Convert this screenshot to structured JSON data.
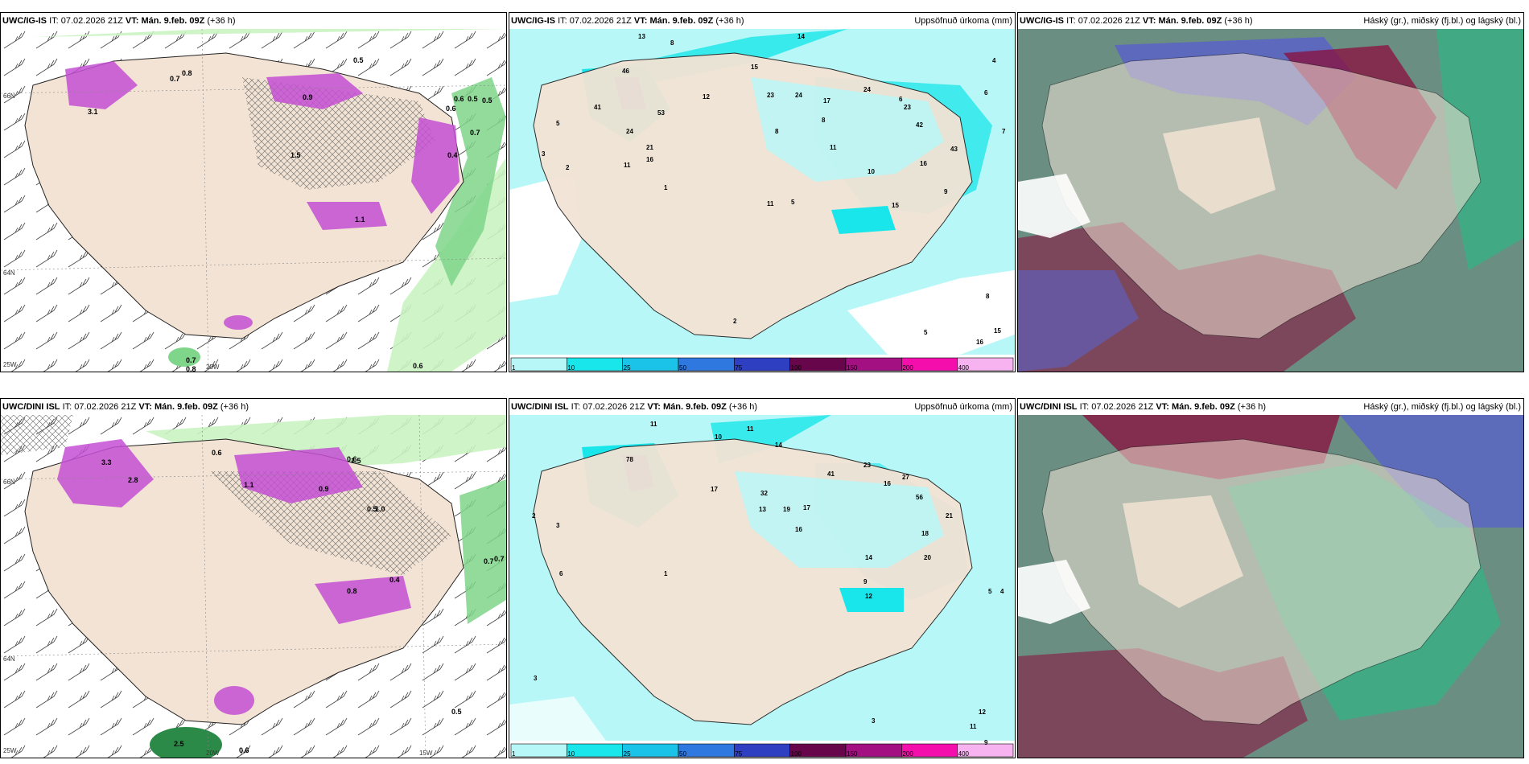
{
  "panels": [
    {
      "id": "p1",
      "model": "UWC/IG-IS",
      "it_label": "IT:",
      "it": "07.02.2026 21Z",
      "vt_label": "VT:",
      "vt": "Mán. 9.feb. 09Z",
      "lead": "(+36 h)",
      "field": ""
    },
    {
      "id": "p2",
      "model": "UWC/IG-IS",
      "it_label": "IT:",
      "it": "07.02.2026 21Z",
      "vt_label": "VT:",
      "vt": "Mán. 9.feb. 09Z",
      "lead": "(+36 h)",
      "field": "Uppsöfnuð úrkoma (mm)"
    },
    {
      "id": "p3",
      "model": "UWC/IG-IS",
      "it_label": "IT:",
      "it": "07.02.2026 21Z",
      "vt_label": "VT:",
      "vt": "Mán. 9.feb. 09Z",
      "lead": "(+36 h)",
      "field": "Háský (gr.), miðský (fj.bl.) og lágský (bl.)"
    },
    {
      "id": "p4",
      "model": "UWC/DINI ISL",
      "it_label": "IT:",
      "it": "07.02.2026 21Z",
      "vt_label": "VT:",
      "vt": "Mán. 9.feb. 09Z",
      "lead": "(+36 h)",
      "field": ""
    },
    {
      "id": "p5",
      "model": "UWC/DINI ISL",
      "it_label": "IT:",
      "it": "07.02.2026 21Z",
      "vt_label": "VT:",
      "vt": "Mán. 9.feb. 09Z",
      "lead": "(+36 h)",
      "field": "Uppsöfnuð úrkoma (mm)"
    },
    {
      "id": "p6",
      "model": "UWC/DINI ISL",
      "it_label": "IT:",
      "it": "07.02.2026 21Z",
      "vt_label": "VT:",
      "vt": "Mán. 9.feb. 09Z",
      "lead": "(+36 h)",
      "field": "Háský (gr.), miðský (fj.bl.) og lágský (bl.)"
    }
  ],
  "colorbar": {
    "labels": [
      "1",
      "10",
      "25",
      "50",
      "75",
      "100",
      "150",
      "200",
      "400"
    ],
    "colors": [
      "#b8f7f7",
      "#19e6ea",
      "#1bc3e8",
      "#2f78e0",
      "#2e3fc1",
      "#68064c",
      "#a31081",
      "#f40fad",
      "#f7b3f0"
    ]
  },
  "colors": {
    "land": "#f2e3d4",
    "sea_precip_light": "#b8f7f7",
    "sea_precip_mid": "#19e6ea",
    "rain_green_light": "#c9f3c1",
    "rain_green_mid": "#7fd58a",
    "rain_green_dark": "#2c8a48",
    "snow_magenta": "#c44fd3",
    "cloud_high": "#6a8f82",
    "cloud_mid": "#5a63c8",
    "cloud_low": "#1fbf86",
    "cloud_red": "#8c0d3c"
  },
  "p1": {
    "ticks": {
      "lat1": "66N",
      "lat2": "64N",
      "lon1": "25W",
      "lon2": "20W"
    },
    "labels": [
      "3.1",
      "0.7",
      "0.8",
      "0.5",
      "0.9",
      "0.6",
      "0.5",
      "0.7",
      "0.6",
      "0.5",
      "0.4",
      "1.5",
      "1.1",
      "0.7",
      "0.8",
      "0.6"
    ]
  },
  "p2": {
    "labels": [
      "13",
      "8",
      "14",
      "15",
      "24",
      "46",
      "41",
      "53",
      "12",
      "24",
      "21",
      "16",
      "11",
      "8",
      "11",
      "6",
      "17",
      "23",
      "24",
      "23",
      "42",
      "43",
      "16",
      "8",
      "3",
      "2",
      "5",
      "1",
      "2",
      "11",
      "4",
      "6",
      "10",
      "15",
      "9",
      "5",
      "7",
      "16",
      "5",
      "15",
      "8"
    ]
  },
  "p4": {
    "ticks": {
      "lat1": "66N",
      "lat2": "64N",
      "lon1": "25W",
      "lon2": "20W",
      "lon3": "15W"
    },
    "labels": [
      "3.3",
      "2.8",
      "0.6",
      "1.1",
      "0.9",
      "1.5",
      "0.7",
      "0.5",
      "0.4",
      "1.0",
      "0.8",
      "0.6",
      "0.7",
      "2.5",
      "0.6",
      "0.5"
    ]
  },
  "p5": {
    "labels": [
      "11",
      "10",
      "11",
      "14",
      "17",
      "32",
      "41",
      "78",
      "23",
      "16",
      "27",
      "56",
      "21",
      "19",
      "17",
      "9",
      "13",
      "18",
      "20",
      "12",
      "14",
      "16",
      "5",
      "4",
      "2",
      "3",
      "1",
      "6",
      "3",
      "12",
      "11",
      "9",
      "3"
    ]
  }
}
